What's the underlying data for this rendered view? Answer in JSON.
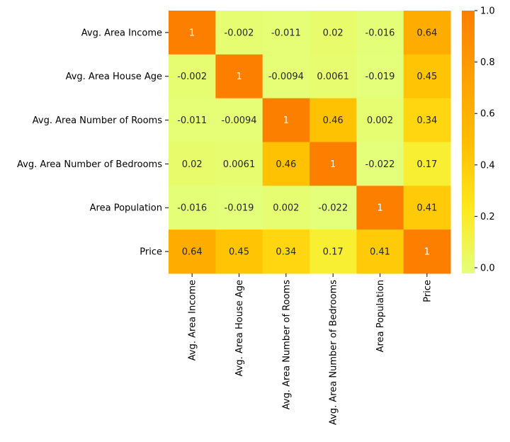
{
  "chart_data": {
    "type": "heatmap",
    "title": "",
    "xlabel": "",
    "ylabel": "",
    "rows": [
      "Avg. Area Income",
      "Avg. Area House Age",
      "Avg. Area Number of Rooms",
      "Avg. Area Number of Bedrooms",
      "Area Population",
      "Price"
    ],
    "columns": [
      "Avg. Area Income",
      "Avg. Area House Age",
      "Avg. Area Number of Rooms",
      "Avg. Area Number of Bedrooms",
      "Area Population",
      "Price"
    ],
    "values": [
      [
        1,
        -0.002,
        -0.011,
        0.02,
        -0.016,
        0.64
      ],
      [
        -0.002,
        1,
        -0.0094,
        0.0061,
        -0.019,
        0.45
      ],
      [
        -0.011,
        -0.0094,
        1,
        0.46,
        0.002,
        0.34
      ],
      [
        0.02,
        0.0061,
        0.46,
        1,
        -0.022,
        0.17
      ],
      [
        -0.016,
        -0.019,
        0.002,
        -0.022,
        1,
        0.41
      ],
      [
        0.64,
        0.45,
        0.34,
        0.17,
        0.41,
        1
      ]
    ],
    "value_labels": [
      [
        "1",
        "-0.002",
        "-0.011",
        "0.02",
        "-0.016",
        "0.64"
      ],
      [
        "-0.002",
        "1",
        "-0.0094",
        "0.0061",
        "-0.019",
        "0.45"
      ],
      [
        "-0.011",
        "-0.0094",
        "1",
        "0.46",
        "0.002",
        "0.34"
      ],
      [
        "0.02",
        "0.0061",
        "0.46",
        "1",
        "-0.022",
        "0.17"
      ],
      [
        "-0.016",
        "-0.019",
        "0.002",
        "-0.022",
        "1",
        "0.41"
      ],
      [
        "0.64",
        "0.45",
        "0.34",
        "0.17",
        "0.41",
        "1"
      ]
    ],
    "colormap": "Wistia",
    "color_stops": [
      "#e4ff7a",
      "#ffe81a",
      "#ffbd00",
      "#ffa000",
      "#fc7f00"
    ],
    "vmin": -0.022,
    "vmax": 1,
    "colorbar": {
      "ticks": [
        0.0,
        0.2,
        0.4,
        0.6,
        0.8,
        1.0
      ],
      "tick_labels": [
        "0.0",
        "0.2",
        "0.4",
        "0.6",
        "0.8",
        "1.0"
      ],
      "position": "right"
    },
    "annotation_colors": {
      "light": "#ffffff",
      "dark": "#262626"
    }
  }
}
